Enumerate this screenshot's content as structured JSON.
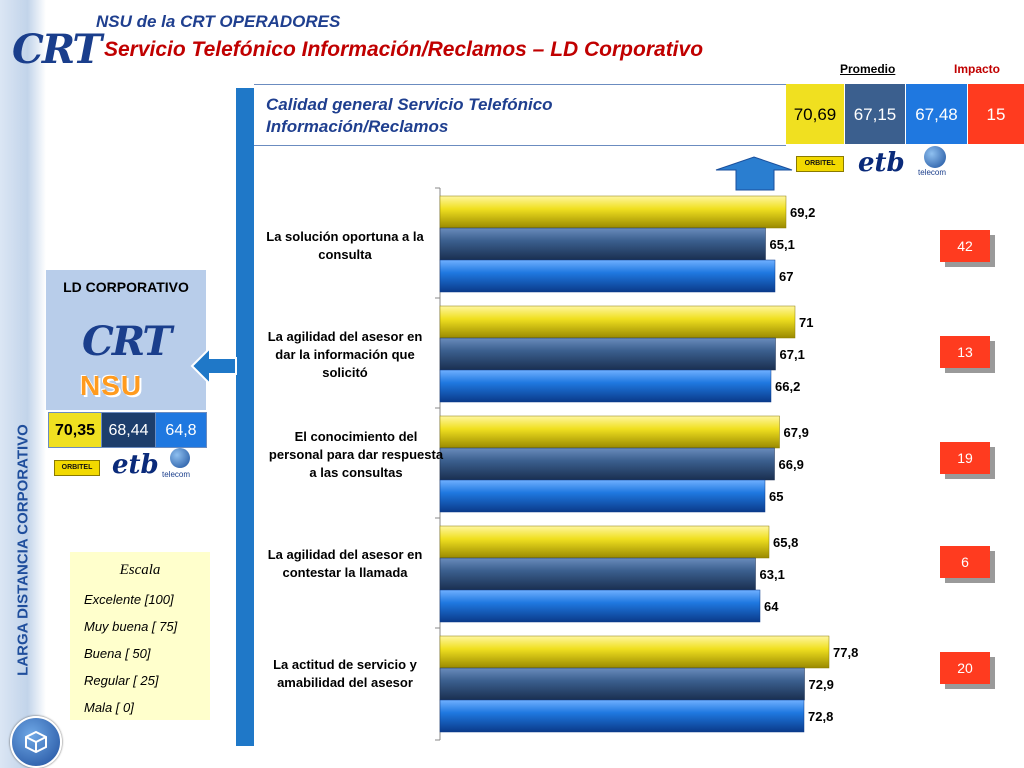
{
  "header": {
    "supertitle": "NSU de la CRT  OPERADORES",
    "title": "Servicio Telefónico  Información/Reclamos – LD Corporativo",
    "col_promedio": "Promedio",
    "col_impacto": "Impacto"
  },
  "branding": {
    "crt_logo_text": "CRT",
    "nsu_logo_text": "NSU",
    "sidebar_label": "LARGA DISTANCIA CORPORATIVO"
  },
  "summary": {
    "label": "Calidad general Servicio Telefónico Información/Reclamos",
    "scores": [
      "70,69",
      "67,15",
      "67,48"
    ],
    "impact": "15"
  },
  "operators": {
    "orbitel": "ORBITEL",
    "etb": "etb",
    "telecom": "telecom"
  },
  "ld_panel": {
    "title": "LD CORPORATIVO",
    "scores": [
      "70,35",
      "68,44",
      "64,8"
    ]
  },
  "scale": {
    "title": "Escala",
    "items": [
      "Excelente [100]",
      "Muy buena [ 75]",
      "Buena     [ 50]",
      "Regular   [ 25]",
      "Mala      [  0]"
    ]
  },
  "colors": {
    "orbitel": "#f0e020",
    "etb": "#3b5f8e",
    "telecom": "#1f78e0",
    "impact": "#ff3b1f",
    "title_red": "#c00000",
    "title_blue": "#1f3f8f"
  },
  "chart_data": {
    "type": "bar",
    "orientation": "horizontal",
    "categories": [
      "La solución oportuna a la consulta",
      "La agilidad del asesor en dar la información que solicitó",
      "El conocimiento del personal para dar respuesta a las consultas",
      "La agilidad del asesor en contestar la llamada",
      "La actitud de servicio y amabilidad del asesor"
    ],
    "series": [
      {
        "values": [
          69.2,
          71,
          67.9,
          65.8,
          77.8
        ],
        "labels": [
          "69,2",
          "71",
          "67,9",
          "65,8",
          "77,8"
        ],
        "color": "#f0e020"
      },
      {
        "values": [
          65.1,
          67.1,
          66.9,
          63.1,
          72.9
        ],
        "labels": [
          "65,1",
          "67,1",
          "66,9",
          "63,1",
          "72,9"
        ],
        "color": "#3b5f8e"
      },
      {
        "values": [
          67,
          66.2,
          65,
          64,
          72.8
        ],
        "labels": [
          "67",
          "66,2",
          "65",
          "64",
          "72,8"
        ],
        "color": "#1f78e0"
      }
    ],
    "impact": [
      "42",
      "13",
      "19",
      "6",
      "20"
    ],
    "xlim": [
      0,
      100
    ]
  }
}
